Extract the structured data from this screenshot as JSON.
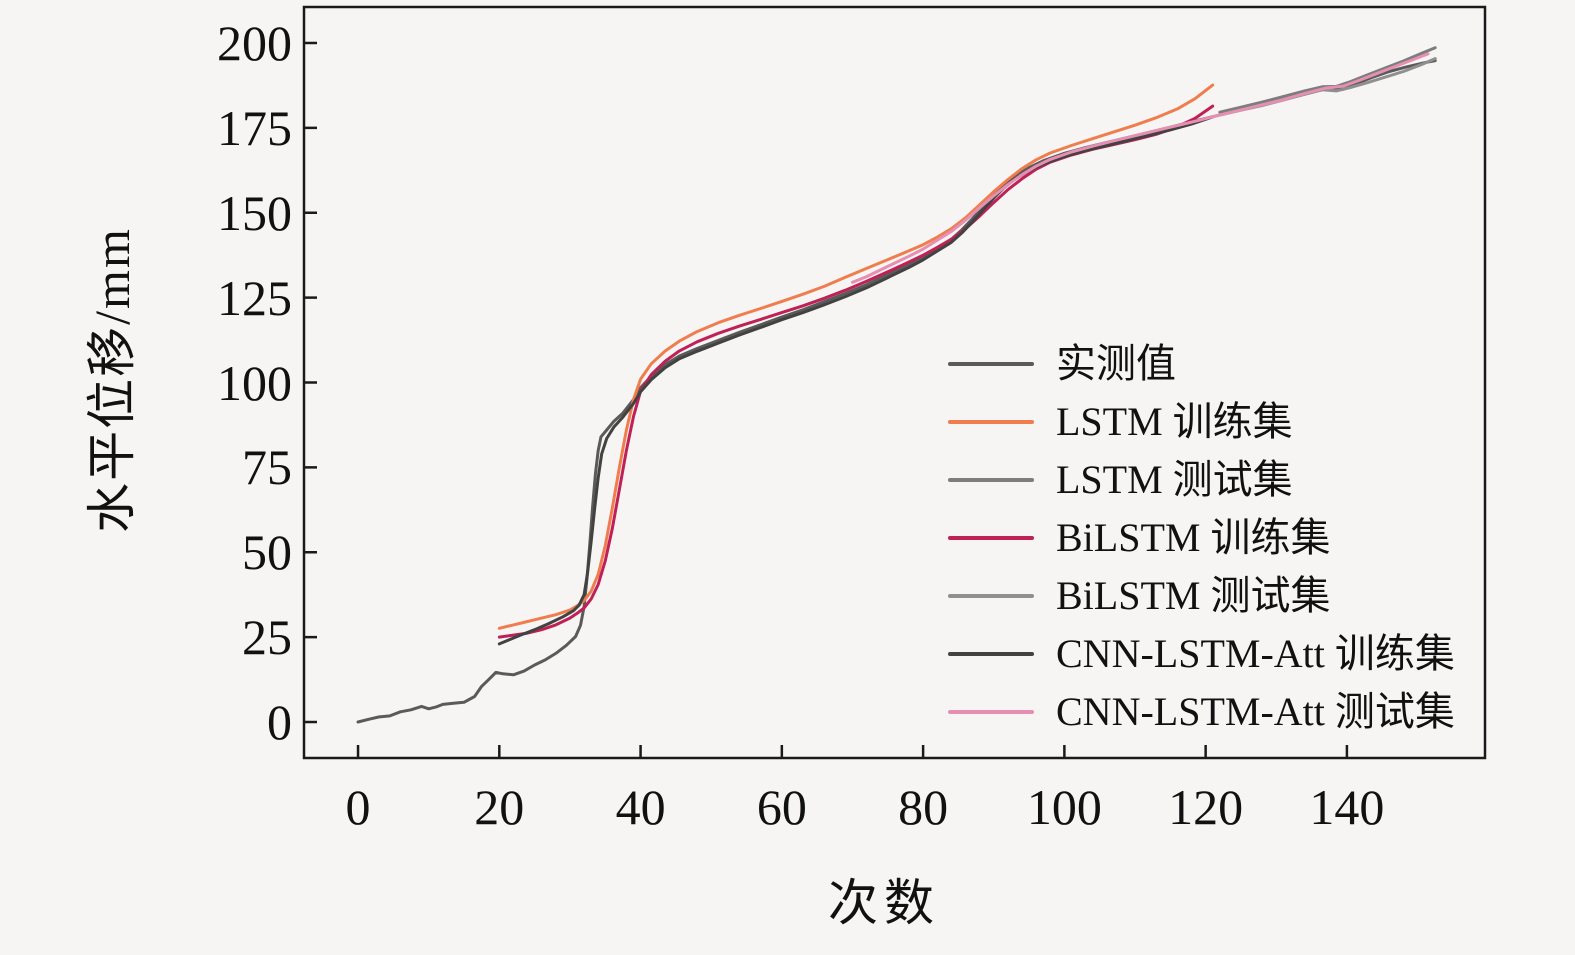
{
  "figure": {
    "background": "#f6f5f4",
    "frame_color": "#1a1a1a"
  },
  "chart_data": {
    "type": "line",
    "title": "",
    "xlabel": "次数",
    "ylabel": "水平位移/mm",
    "x_ticks": [
      0,
      20,
      40,
      60,
      80,
      100,
      120,
      140
    ],
    "y_ticks": [
      0,
      25,
      50,
      75,
      100,
      125,
      150,
      175,
      200
    ],
    "xlim": [
      -7.65,
      159.55
    ],
    "ylim": [
      -10.6,
      210.6
    ],
    "grid": false,
    "legend_position": "center-right",
    "series": [
      {
        "name": "实测值",
        "color": "#5a5a5a",
        "width": 3,
        "points": [
          [
            0,
            0
          ],
          [
            1.5,
            0.8
          ],
          [
            3,
            1.5
          ],
          [
            4.5,
            1.8
          ],
          [
            6,
            3
          ],
          [
            7.5,
            3.6
          ],
          [
            9,
            4.6
          ],
          [
            10,
            3.9
          ],
          [
            11,
            4.4
          ],
          [
            12,
            5.2
          ],
          [
            13.5,
            5.5
          ],
          [
            15,
            5.8
          ],
          [
            16.5,
            7.5
          ],
          [
            17.5,
            10.5
          ],
          [
            18.5,
            12.5
          ],
          [
            19.5,
            14.6
          ],
          [
            20.5,
            14.2
          ],
          [
            22,
            13.9
          ],
          [
            23.5,
            15
          ],
          [
            25,
            16.8
          ],
          [
            26.5,
            18.3
          ],
          [
            28,
            20.2
          ],
          [
            29.5,
            22.6
          ],
          [
            30.8,
            25.2
          ],
          [
            31.5,
            28.5
          ],
          [
            32,
            34
          ],
          [
            32.4,
            42
          ],
          [
            32.8,
            52
          ],
          [
            33.2,
            63
          ],
          [
            33.6,
            73
          ],
          [
            34,
            80
          ],
          [
            34.4,
            84
          ],
          [
            35.2,
            86
          ],
          [
            36.2,
            88.5
          ],
          [
            37.5,
            91
          ],
          [
            39,
            95
          ],
          [
            40,
            98.5
          ],
          [
            41.5,
            101.8
          ],
          [
            43.5,
            105.3
          ],
          [
            45.5,
            107.8
          ],
          [
            48,
            110
          ],
          [
            51,
            112.4
          ],
          [
            54,
            114.8
          ],
          [
            57,
            117
          ],
          [
            60,
            119.3
          ],
          [
            63,
            121.4
          ],
          [
            66,
            123.8
          ],
          [
            69,
            126.2
          ],
          [
            72,
            128.8
          ],
          [
            75,
            131.8
          ],
          [
            78,
            134.8
          ],
          [
            80,
            137
          ],
          [
            82,
            139.6
          ],
          [
            84,
            142.2
          ],
          [
            85.5,
            145
          ],
          [
            87,
            148.3
          ],
          [
            88.5,
            151.8
          ],
          [
            90,
            155.2
          ],
          [
            91.5,
            158.3
          ],
          [
            93,
            160.8
          ],
          [
            95,
            163.3
          ],
          [
            97,
            165.3
          ],
          [
            100,
            167.5
          ],
          [
            103,
            169.2
          ],
          [
            106,
            170.7
          ],
          [
            109,
            172.2
          ],
          [
            112,
            173.7
          ],
          [
            115,
            175.2
          ],
          [
            118,
            176.8
          ],
          [
            121,
            178.3
          ],
          [
            124,
            179.8
          ],
          [
            127,
            181.3
          ],
          [
            130,
            182.8
          ],
          [
            133,
            184.4
          ],
          [
            136,
            186
          ],
          [
            138,
            186.8
          ],
          [
            139.5,
            186.4
          ],
          [
            141,
            187.8
          ],
          [
            143.5,
            189.8
          ],
          [
            146,
            191.6
          ],
          [
            148.5,
            193
          ],
          [
            151,
            194.2
          ],
          [
            152.5,
            194.8
          ]
        ]
      },
      {
        "name": "LSTM 训练集",
        "color": "#ef7d4d",
        "width": 3,
        "points": [
          [
            20,
            27.6
          ],
          [
            22,
            28.6
          ],
          [
            24,
            29.6
          ],
          [
            26,
            30.6
          ],
          [
            28,
            31.6
          ],
          [
            30,
            33
          ],
          [
            31,
            34.2
          ],
          [
            32,
            35.8
          ],
          [
            33,
            38.5
          ],
          [
            34,
            43.5
          ],
          [
            35,
            52
          ],
          [
            36,
            63
          ],
          [
            37,
            75
          ],
          [
            38,
            86
          ],
          [
            39,
            95
          ],
          [
            40,
            101
          ],
          [
            41.5,
            105.5
          ],
          [
            43.5,
            109.3
          ],
          [
            45.5,
            112.2
          ],
          [
            48,
            115
          ],
          [
            51,
            117.6
          ],
          [
            54,
            119.8
          ],
          [
            57,
            121.8
          ],
          [
            60,
            123.9
          ],
          [
            63,
            126
          ],
          [
            66,
            128.3
          ],
          [
            69,
            131
          ],
          [
            72,
            133.6
          ],
          [
            75,
            136.2
          ],
          [
            78,
            138.8
          ],
          [
            80,
            140.6
          ],
          [
            82,
            142.8
          ],
          [
            84,
            145.3
          ],
          [
            86,
            148.5
          ],
          [
            88,
            152.3
          ],
          [
            90,
            156.2
          ],
          [
            92,
            159.8
          ],
          [
            94,
            163
          ],
          [
            96,
            165.6
          ],
          [
            98,
            167.6
          ],
          [
            101,
            169.8
          ],
          [
            104,
            171.8
          ],
          [
            107,
            173.8
          ],
          [
            110,
            175.8
          ],
          [
            113,
            178
          ],
          [
            116,
            180.6
          ],
          [
            118.5,
            183.6
          ],
          [
            121,
            187.6
          ]
        ]
      },
      {
        "name": "LSTM 测试集",
        "color": "#7d7d7d",
        "width": 3,
        "points": [
          [
            122,
            179.6
          ],
          [
            125,
            181.1
          ],
          [
            128,
            182.6
          ],
          [
            131,
            184.2
          ],
          [
            134,
            185.9
          ],
          [
            136.5,
            187.1
          ],
          [
            138.5,
            187.2
          ],
          [
            140.5,
            188.6
          ],
          [
            143,
            190.7
          ],
          [
            145.5,
            192.7
          ],
          [
            148,
            194.7
          ],
          [
            150.5,
            196.9
          ],
          [
            152.5,
            198.6
          ]
        ]
      },
      {
        "name": "BiLSTM 训练集",
        "color": "#bf2157",
        "width": 3,
        "points": [
          [
            20,
            25
          ],
          [
            22,
            25.6
          ],
          [
            24,
            26.2
          ],
          [
            26,
            27.2
          ],
          [
            28,
            28.6
          ],
          [
            30,
            30.6
          ],
          [
            31,
            32
          ],
          [
            32,
            33.6
          ],
          [
            33,
            36.2
          ],
          [
            34,
            40.5
          ],
          [
            35,
            47.5
          ],
          [
            36,
            57
          ],
          [
            37,
            68.5
          ],
          [
            38,
            80
          ],
          [
            39,
            90
          ],
          [
            40,
            97.5
          ],
          [
            41.5,
            102.3
          ],
          [
            43.5,
            106.3
          ],
          [
            45.5,
            109.3
          ],
          [
            48,
            112
          ],
          [
            51,
            114.5
          ],
          [
            54,
            116.6
          ],
          [
            57,
            118.6
          ],
          [
            60,
            120.6
          ],
          [
            63,
            122.6
          ],
          [
            66,
            124.8
          ],
          [
            69,
            127.2
          ],
          [
            72,
            129.8
          ],
          [
            75,
            132.6
          ],
          [
            78,
            135.5
          ],
          [
            80,
            137.5
          ],
          [
            82,
            139.8
          ],
          [
            84,
            142.2
          ],
          [
            86,
            145.3
          ],
          [
            88,
            149
          ],
          [
            90,
            153
          ],
          [
            92,
            156.8
          ],
          [
            94,
            160
          ],
          [
            96,
            162.8
          ],
          [
            98,
            164.9
          ],
          [
            101,
            167
          ],
          [
            104,
            168.7
          ],
          [
            107,
            170.1
          ],
          [
            110,
            171.5
          ],
          [
            113,
            173.1
          ],
          [
            115.5,
            174.9
          ],
          [
            118.5,
            177.8
          ],
          [
            121,
            181.4
          ]
        ]
      },
      {
        "name": "BiLSTM 测试集",
        "color": "#8f8f8f",
        "width": 3,
        "points": [
          [
            122,
            178.8
          ],
          [
            125,
            180.2
          ],
          [
            128,
            181.6
          ],
          [
            131,
            183.2
          ],
          [
            134,
            184.9
          ],
          [
            136.5,
            186.2
          ],
          [
            138.5,
            185.9
          ],
          [
            140.5,
            186.9
          ],
          [
            143,
            188.4
          ],
          [
            145.5,
            190
          ],
          [
            148,
            191.6
          ],
          [
            150.5,
            193.6
          ],
          [
            152.5,
            195.4
          ]
        ]
      },
      {
        "name": "CNN-LSTM-Att 训练集",
        "color": "#424242",
        "width": 3,
        "points": [
          [
            20,
            23
          ],
          [
            21.5,
            24.3
          ],
          [
            23,
            25.6
          ],
          [
            25,
            27.2
          ],
          [
            27,
            29
          ],
          [
            29,
            31
          ],
          [
            30.5,
            32.8
          ],
          [
            31.3,
            34.4
          ],
          [
            32,
            37.5
          ],
          [
            32.5,
            44
          ],
          [
            33,
            53
          ],
          [
            33.5,
            63
          ],
          [
            34,
            72
          ],
          [
            34.5,
            79
          ],
          [
            35.2,
            83.5
          ],
          [
            36.2,
            86.8
          ],
          [
            37.5,
            89.8
          ],
          [
            39,
            93.8
          ],
          [
            40,
            97.3
          ],
          [
            41.5,
            100.8
          ],
          [
            43.5,
            104.4
          ],
          [
            45.5,
            107
          ],
          [
            48,
            109.2
          ],
          [
            51,
            111.6
          ],
          [
            54,
            114
          ],
          [
            57,
            116.2
          ],
          [
            60,
            118.5
          ],
          [
            63,
            120.6
          ],
          [
            66,
            122.9
          ],
          [
            69,
            125.3
          ],
          [
            72,
            127.9
          ],
          [
            75,
            130.9
          ],
          [
            78,
            133.9
          ],
          [
            80,
            136.1
          ],
          [
            82,
            138.7
          ],
          [
            84,
            141.3
          ],
          [
            85.5,
            144.1
          ],
          [
            87,
            147.4
          ],
          [
            88.5,
            150.9
          ],
          [
            90,
            154.3
          ],
          [
            91.5,
            157.4
          ],
          [
            93,
            159.9
          ],
          [
            95,
            162.4
          ],
          [
            97,
            164.4
          ],
          [
            100,
            166.6
          ],
          [
            103,
            168.3
          ],
          [
            106,
            169.8
          ],
          [
            109,
            171.3
          ],
          [
            112,
            172.8
          ],
          [
            115,
            174.4
          ],
          [
            118,
            176.1
          ],
          [
            121,
            178.2
          ]
        ]
      },
      {
        "name": "CNN-LSTM-Att 测试集",
        "color": "#e78fb3",
        "width": 3,
        "points": [
          [
            70,
            129.5
          ],
          [
            72,
            131.2
          ],
          [
            75,
            134.2
          ],
          [
            78,
            137.2
          ],
          [
            80,
            139.3
          ],
          [
            82,
            141.9
          ],
          [
            84,
            144.5
          ],
          [
            86,
            147.8
          ],
          [
            88,
            151.5
          ],
          [
            90,
            155
          ],
          [
            92,
            158.3
          ],
          [
            94,
            161.2
          ],
          [
            96,
            163.7
          ],
          [
            98,
            165.7
          ],
          [
            101,
            167.9
          ],
          [
            104,
            169.6
          ],
          [
            107,
            171.2
          ],
          [
            110,
            172.7
          ],
          [
            113,
            174.2
          ],
          [
            116,
            175.7
          ],
          [
            119,
            177.2
          ],
          [
            122,
            178.8
          ],
          [
            125,
            180.3
          ],
          [
            128,
            181.8
          ],
          [
            131,
            183.3
          ],
          [
            134,
            185.1
          ],
          [
            137,
            186.7
          ],
          [
            139.5,
            187.3
          ],
          [
            141.5,
            188.8
          ],
          [
            144,
            190.8
          ],
          [
            146.5,
            192.8
          ],
          [
            149,
            194.8
          ],
          [
            151.5,
            196.8
          ]
        ]
      }
    ]
  }
}
